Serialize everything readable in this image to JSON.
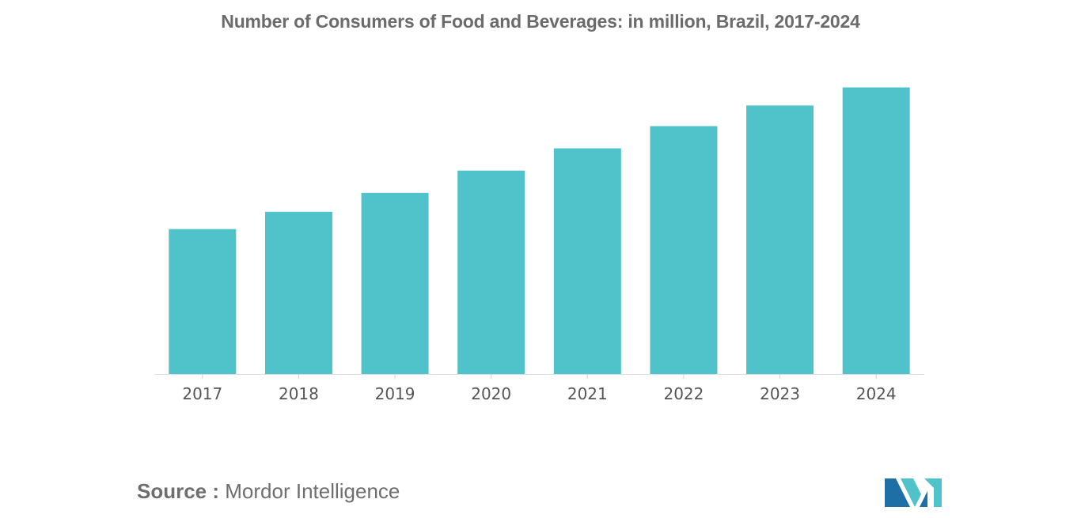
{
  "chart_data": {
    "type": "bar",
    "title": "Number of Consumers of Food and Beverages: in million, Brazil, 2017-2024",
    "categories": [
      "2017",
      "2018",
      "2019",
      "2020",
      "2021",
      "2022",
      "2023",
      "2024"
    ],
    "values": [
      176,
      197,
      220,
      247,
      274,
      301,
      326,
      348
    ],
    "xlabel": "",
    "ylabel": "",
    "ylim": [
      0,
      360
    ],
    "grid": false,
    "legend": "none",
    "bar_color": "#4fc3c9"
  },
  "source": {
    "label": "Source :",
    "text": "Mordor Intelligence"
  },
  "logo": {
    "icon": "mordor-intelligence-logo-icon",
    "color_dark": "#1d6fa5",
    "color_light": "#4fc3c9"
  }
}
